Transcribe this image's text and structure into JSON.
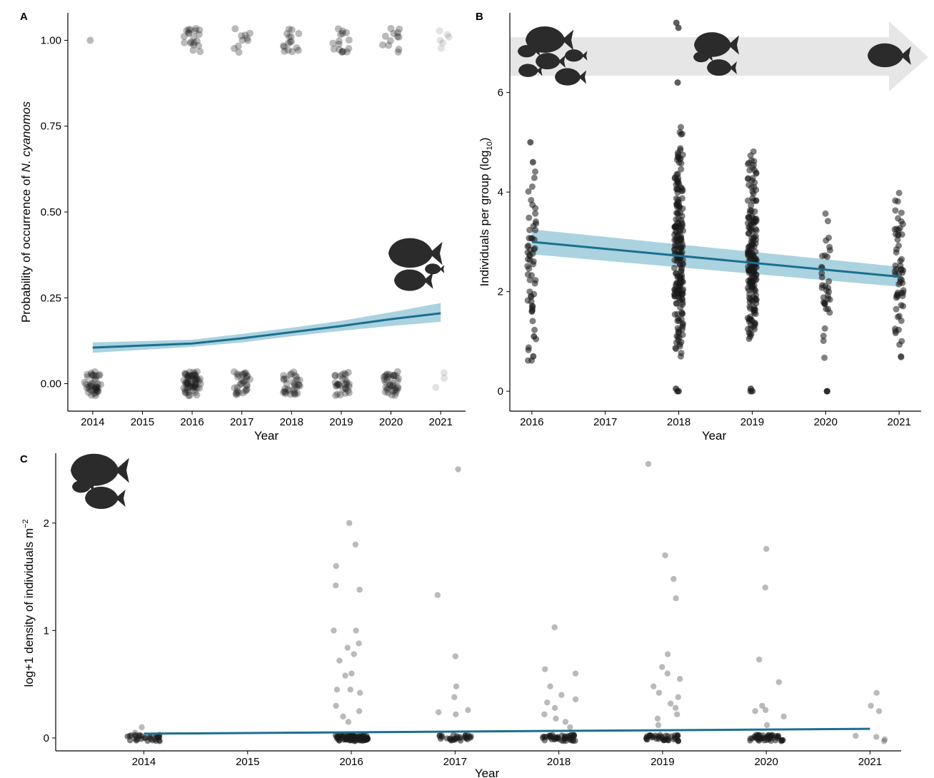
{
  "figure": {
    "background": "#ffffff",
    "point_color": "#1a1a1a",
    "trend_color": "#1b6f8f",
    "band_color": "#8fc3d4",
    "silhouette_color": "#2b2b2b",
    "arrow_color": "#e6e6e6"
  },
  "chart_data": [
    {
      "id": "A",
      "type": "scatter",
      "panel_label": "A",
      "xlabel": "Year",
      "ylabel_prefix": "Probability of occurrence of ",
      "ylabel_species": "N. cyanomos",
      "x_ticks": [
        "2014",
        "2015",
        "2016",
        "2017",
        "2018",
        "2019",
        "2020",
        "2021"
      ],
      "y_ticks": [
        "0.00",
        "0.25",
        "0.50",
        "0.75",
        "1.00"
      ],
      "x_range": [
        2013.5,
        2021.5
      ],
      "y_range": [
        -0.08,
        1.08
      ],
      "jittered_groups": [
        {
          "year": 2014,
          "y": 0.0,
          "count": 40,
          "opacity": 0.3
        },
        {
          "year": 2014,
          "y": 1.0,
          "count": 1,
          "opacity": 0.3
        },
        {
          "year": 2016,
          "y": 0.0,
          "count": 60,
          "opacity": 0.3
        },
        {
          "year": 2016,
          "y": 1.0,
          "count": 20,
          "opacity": 0.3
        },
        {
          "year": 2017,
          "y": 0.0,
          "count": 30,
          "opacity": 0.3
        },
        {
          "year": 2017,
          "y": 1.0,
          "count": 10,
          "opacity": 0.3
        },
        {
          "year": 2018,
          "y": 0.0,
          "count": 32,
          "opacity": 0.3
        },
        {
          "year": 2018,
          "y": 1.0,
          "count": 16,
          "opacity": 0.3
        },
        {
          "year": 2019,
          "y": 0.0,
          "count": 30,
          "opacity": 0.3
        },
        {
          "year": 2019,
          "y": 1.0,
          "count": 16,
          "opacity": 0.3
        },
        {
          "year": 2020,
          "y": 0.0,
          "count": 36,
          "opacity": 0.3
        },
        {
          "year": 2020,
          "y": 1.0,
          "count": 12,
          "opacity": 0.3
        },
        {
          "year": 2021,
          "y": 0.0,
          "count": 3,
          "opacity": 0.12
        },
        {
          "year": 2021,
          "y": 1.0,
          "count": 6,
          "opacity": 0.12
        }
      ],
      "trend": {
        "x": [
          2014,
          2016,
          2017,
          2018,
          2019,
          2020,
          2021
        ],
        "y": [
          0.105,
          0.117,
          0.132,
          0.15,
          0.168,
          0.188,
          0.205
        ]
      },
      "band_lower": [
        0.09,
        0.107,
        0.12,
        0.138,
        0.154,
        0.168,
        0.18
      ],
      "band_upper": [
        0.12,
        0.128,
        0.145,
        0.163,
        0.183,
        0.208,
        0.235
      ]
    },
    {
      "id": "B",
      "type": "scatter",
      "panel_label": "B",
      "xlabel": "Year",
      "ylabel_main": "Individuals per group (log",
      "ylabel_sub": "10",
      "ylabel_end": ")",
      "x_ticks": [
        "2016",
        "2017",
        "2018",
        "2019",
        "2020",
        "2021"
      ],
      "y_ticks": [
        "0",
        "2",
        "4",
        "6"
      ],
      "x_range": [
        2015.7,
        2021.3
      ],
      "y_range": [
        -0.4,
        7.6
      ],
      "jittered_groups": [
        {
          "year": 2016,
          "count": 55,
          "min": 0.6,
          "max": 5.0,
          "extra": [
            0.7,
            1.1,
            1.6,
            4.6,
            5.0
          ]
        },
        {
          "year": 2018,
          "count": 210,
          "min": 0.6,
          "max": 5.4,
          "extra": [
            0.0,
            0.0,
            0.05,
            6.2,
            7.4,
            7.3
          ]
        },
        {
          "year": 2019,
          "count": 190,
          "min": 0.6,
          "max": 5.1,
          "extra": [
            0.0,
            0.0,
            0.05
          ]
        },
        {
          "year": 2020,
          "count": 35,
          "min": 0.6,
          "max": 3.9,
          "extra": [
            0.0,
            0.0
          ]
        },
        {
          "year": 2021,
          "count": 60,
          "min": 0.6,
          "max": 4.3,
          "extra": []
        }
      ],
      "trend": {
        "x": [
          2016,
          2021
        ],
        "y": [
          3.0,
          2.3
        ]
      },
      "band_lower": [
        2.75,
        2.1
      ],
      "band_upper": [
        3.25,
        2.5
      ]
    },
    {
      "id": "C",
      "type": "scatter",
      "panel_label": "C",
      "xlabel": "Year",
      "ylabel_main": "log+1 density of individuals m",
      "ylabel_sup": "−2",
      "x_ticks": [
        "2014",
        "2015",
        "2016",
        "2017",
        "2018",
        "2019",
        "2020",
        "2021"
      ],
      "y_ticks": [
        "0",
        "1",
        "2"
      ],
      "x_range": [
        2013.15,
        2021.3
      ],
      "y_range": [
        -0.12,
        2.65
      ],
      "scattered_points": [
        {
          "year": 2014,
          "values": [
            0.1,
            0.05
          ]
        },
        {
          "year": 2016,
          "values": [
            2.0,
            1.8,
            1.6,
            1.42,
            1.38,
            1.0,
            1.0,
            0.88,
            0.84,
            0.78,
            0.72,
            0.6,
            0.58,
            0.45,
            0.45,
            0.42,
            0.3,
            0.25,
            0.2,
            0.15
          ]
        },
        {
          "year": 2017,
          "values": [
            2.5,
            1.33,
            0.76,
            0.48,
            0.38,
            0.26,
            0.24,
            0.22
          ]
        },
        {
          "year": 2018,
          "values": [
            1.03,
            0.64,
            0.6,
            0.48,
            0.4,
            0.36,
            0.33,
            0.28,
            0.22,
            0.18,
            0.15,
            0.1
          ]
        },
        {
          "year": 2019,
          "values": [
            2.55,
            1.7,
            1.48,
            1.3,
            0.78,
            0.66,
            0.6,
            0.55,
            0.48,
            0.42,
            0.38,
            0.32,
            0.28,
            0.22,
            0.18,
            0.12
          ]
        },
        {
          "year": 2020,
          "values": [
            1.76,
            1.4,
            0.73,
            0.52,
            0.3,
            0.26,
            0.25,
            0.2,
            0.12
          ]
        },
        {
          "year": 2021,
          "values": [
            0.42,
            0.3,
            0.25,
            0.02,
            0.01
          ]
        }
      ],
      "zero_clusters": [
        {
          "year": 2014,
          "count": 30
        },
        {
          "year": 2016,
          "count": 80
        },
        {
          "year": 2017,
          "count": 30
        },
        {
          "year": 2018,
          "count": 45
        },
        {
          "year": 2019,
          "count": 40
        },
        {
          "year": 2020,
          "count": 50
        },
        {
          "year": 2021,
          "count": 2
        }
      ],
      "trend": {
        "x": [
          2014,
          2021
        ],
        "y": [
          0.04,
          0.085
        ]
      }
    }
  ]
}
